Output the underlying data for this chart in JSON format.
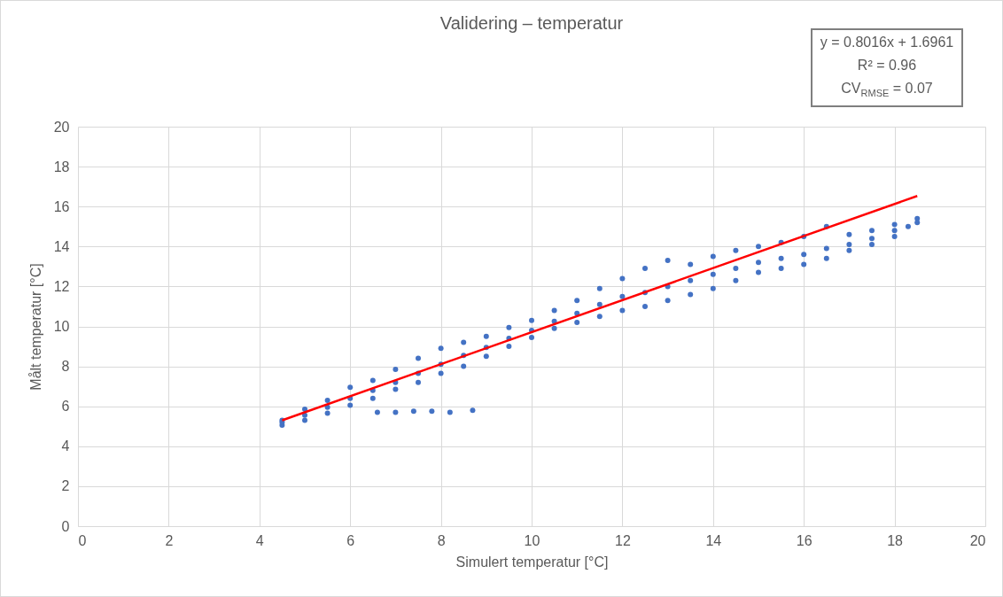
{
  "chart_data": {
    "type": "scatter",
    "title": "Validering – temperatur",
    "xlabel": "Simulert temperatur [°C]",
    "ylabel": "Målt temperatur [°C]",
    "annotations": [
      "y = 0.8016x + 1.6961",
      "R² = 0.96",
      "CV$_{RMSE}$ = 0.07"
    ],
    "xlim": [
      0,
      20
    ],
    "xticks": [
      0,
      2,
      4,
      6,
      8,
      10,
      12,
      14,
      16,
      18,
      20
    ],
    "ylim": [
      0,
      20
    ],
    "yticks": [
      0,
      2,
      4,
      6,
      8,
      10,
      12,
      14,
      16,
      18,
      20
    ],
    "grid": true,
    "series": [
      {
        "marker": "circle",
        "color": "#4472c4",
        "x": [
          4.5,
          4.5,
          4.5,
          5,
          5,
          5,
          5.5,
          5.5,
          5.5,
          6,
          6,
          6,
          6.5,
          6.5,
          6.5,
          7,
          7,
          7,
          7.5,
          7.5,
          7.5,
          8,
          8,
          8,
          8.5,
          8.5,
          8.5,
          9,
          9,
          9,
          9.5,
          9.5,
          9.5,
          10,
          10,
          10,
          10.5,
          10.5,
          10.5,
          11,
          11,
          11,
          11.5,
          11.5,
          11.5,
          12,
          12,
          12,
          12.5,
          12.5,
          12.5,
          13,
          13,
          13,
          13.5,
          13.5,
          13.5,
          14,
          14,
          14,
          14.5,
          14.5,
          14.5,
          15,
          15,
          15,
          15.5,
          15.5,
          15.5,
          16,
          16,
          16,
          16.5,
          16.5,
          16.5,
          17,
          17,
          17,
          17.5,
          17.5,
          17.5,
          18,
          18,
          18,
          18.3,
          18.5,
          18.5,
          6.6,
          7,
          7.4,
          7.8,
          8.2,
          8.7
        ],
        "values": [
          5.05,
          5.2,
          5.3,
          5.3,
          5.55,
          5.85,
          5.65,
          5.95,
          6.3,
          6.05,
          6.4,
          6.95,
          6.4,
          6.8,
          7.3,
          6.85,
          7.2,
          7.85,
          7.2,
          7.65,
          8.4,
          7.65,
          8.1,
          8.9,
          8,
          8.55,
          9.2,
          8.5,
          8.95,
          9.5,
          9,
          9.4,
          9.95,
          9.45,
          9.8,
          10.3,
          9.9,
          10.25,
          10.8,
          10.2,
          10.65,
          11.3,
          10.5,
          11.1,
          11.9,
          10.8,
          11.5,
          12.4,
          11,
          11.7,
          12.9,
          11.3,
          12,
          13.3,
          11.6,
          12.3,
          13.1,
          11.9,
          12.6,
          13.5,
          12.3,
          12.9,
          13.8,
          12.7,
          13.2,
          14,
          12.9,
          13.4,
          14.2,
          13.1,
          13.6,
          14.5,
          13.4,
          13.9,
          15,
          13.8,
          14.1,
          14.6,
          14.1,
          14.4,
          14.8,
          14.5,
          14.8,
          15.1,
          15,
          15.2,
          15.4,
          5.7,
          5.7,
          5.75,
          5.75,
          5.7,
          5.8
        ]
      },
      {
        "type": "line",
        "color": "#ff0000",
        "x": [
          4.5,
          18.5
        ],
        "values": [
          5.3,
          16.53
        ]
      }
    ]
  }
}
